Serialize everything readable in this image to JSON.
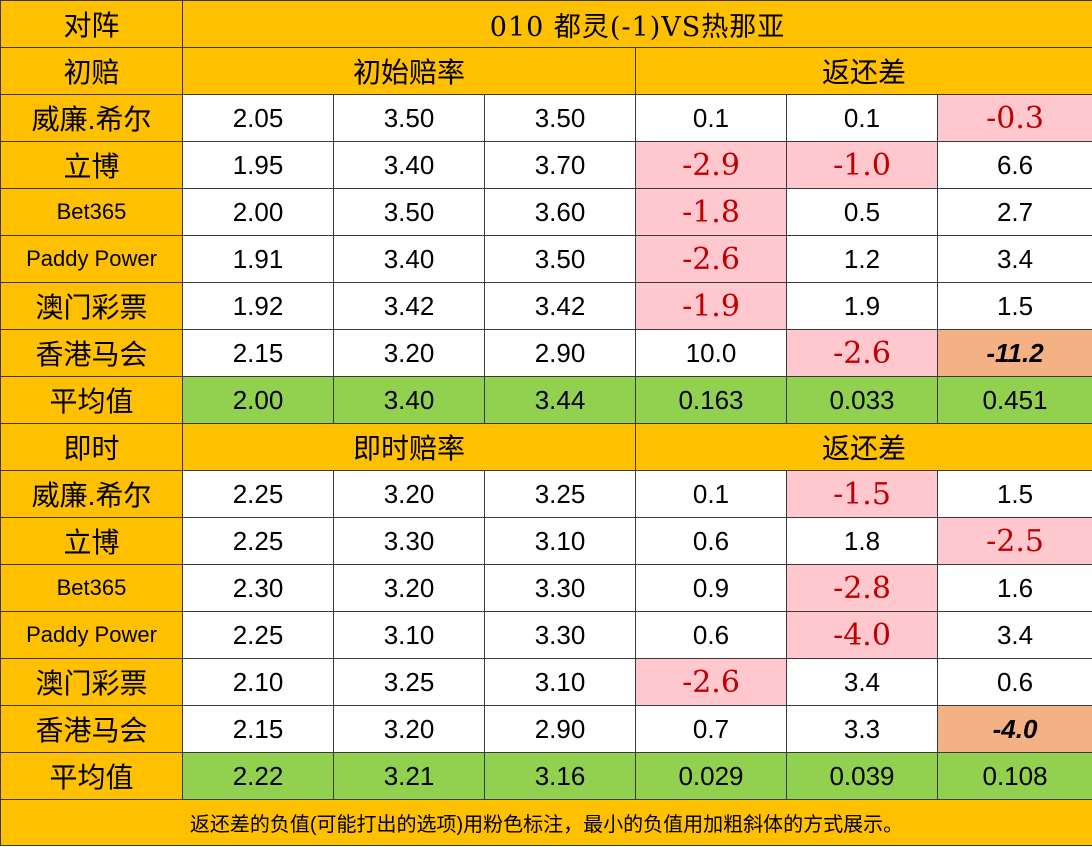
{
  "header": {
    "matchup_label": "对阵",
    "match_title": "010 都灵(-1)VS热那亚"
  },
  "sections": [
    {
      "section_label": "初赔",
      "odds_header": "初始赔率",
      "return_header": "返还差",
      "rows": [
        {
          "bookmaker": "威廉.希尔",
          "odds": [
            "2.05",
            "3.50",
            "3.50"
          ],
          "diff": [
            {
              "v": "0.1",
              "s": "n"
            },
            {
              "v": "0.1",
              "s": "n"
            },
            {
              "v": "-0.3",
              "s": "p"
            }
          ]
        },
        {
          "bookmaker": "立博",
          "odds": [
            "1.95",
            "3.40",
            "3.70"
          ],
          "diff": [
            {
              "v": "-2.9",
              "s": "p"
            },
            {
              "v": "-1.0",
              "s": "p"
            },
            {
              "v": "6.6",
              "s": "n"
            }
          ]
        },
        {
          "bookmaker": "Bet365",
          "odds": [
            "2.00",
            "3.50",
            "3.60"
          ],
          "diff": [
            {
              "v": "-1.8",
              "s": "p"
            },
            {
              "v": "0.5",
              "s": "n"
            },
            {
              "v": "2.7",
              "s": "n"
            }
          ]
        },
        {
          "bookmaker": "Paddy Power",
          "odds": [
            "1.91",
            "3.40",
            "3.50"
          ],
          "diff": [
            {
              "v": "-2.6",
              "s": "p"
            },
            {
              "v": "1.2",
              "s": "n"
            },
            {
              "v": "3.4",
              "s": "n"
            }
          ]
        },
        {
          "bookmaker": "澳门彩票",
          "odds": [
            "1.92",
            "3.42",
            "3.42"
          ],
          "diff": [
            {
              "v": "-1.9",
              "s": "p"
            },
            {
              "v": "1.9",
              "s": "n"
            },
            {
              "v": "1.5",
              "s": "n"
            }
          ]
        },
        {
          "bookmaker": "香港马会",
          "odds": [
            "2.15",
            "3.20",
            "2.90"
          ],
          "diff": [
            {
              "v": "10.0",
              "s": "n"
            },
            {
              "v": "-2.6",
              "s": "p"
            },
            {
              "v": "-11.2",
              "s": "o"
            }
          ]
        }
      ],
      "average": {
        "label": "平均值",
        "odds": [
          "2.00",
          "3.40",
          "3.44"
        ],
        "diff": [
          "0.163",
          "0.033",
          "0.451"
        ]
      }
    },
    {
      "section_label": "即时",
      "odds_header": "即时赔率",
      "return_header": "返还差",
      "rows": [
        {
          "bookmaker": "威廉.希尔",
          "odds": [
            "2.25",
            "3.20",
            "3.25"
          ],
          "diff": [
            {
              "v": "0.1",
              "s": "n"
            },
            {
              "v": "-1.5",
              "s": "p"
            },
            {
              "v": "1.5",
              "s": "n"
            }
          ]
        },
        {
          "bookmaker": "立博",
          "odds": [
            "2.25",
            "3.30",
            "3.10"
          ],
          "diff": [
            {
              "v": "0.6",
              "s": "n"
            },
            {
              "v": "1.8",
              "s": "n"
            },
            {
              "v": "-2.5",
              "s": "p"
            }
          ]
        },
        {
          "bookmaker": "Bet365",
          "odds": [
            "2.30",
            "3.20",
            "3.30"
          ],
          "diff": [
            {
              "v": "0.9",
              "s": "n"
            },
            {
              "v": "-2.8",
              "s": "p"
            },
            {
              "v": "1.6",
              "s": "n"
            }
          ]
        },
        {
          "bookmaker": "Paddy Power",
          "odds": [
            "2.25",
            "3.10",
            "3.30"
          ],
          "diff": [
            {
              "v": "0.6",
              "s": "n"
            },
            {
              "v": "-4.0",
              "s": "p"
            },
            {
              "v": "3.4",
              "s": "n"
            }
          ]
        },
        {
          "bookmaker": "澳门彩票",
          "odds": [
            "2.10",
            "3.25",
            "3.10"
          ],
          "diff": [
            {
              "v": "-2.6",
              "s": "p"
            },
            {
              "v": "3.4",
              "s": "n"
            },
            {
              "v": "0.6",
              "s": "n"
            }
          ]
        },
        {
          "bookmaker": "香港马会",
          "odds": [
            "2.15",
            "3.20",
            "2.90"
          ],
          "diff": [
            {
              "v": "0.7",
              "s": "n"
            },
            {
              "v": "3.3",
              "s": "n"
            },
            {
              "v": "-4.0",
              "s": "o"
            }
          ]
        }
      ],
      "average": {
        "label": "平均值",
        "odds": [
          "2.22",
          "3.21",
          "3.16"
        ],
        "diff": [
          "0.029",
          "0.039",
          "0.108"
        ]
      }
    }
  ],
  "footer": {
    "note": "返还差的负值(可能打出的选项)用粉色标注，最小的负值用加粗斜体的方式展示。"
  },
  "colors": {
    "header_yellow": "#ffc000",
    "average_green": "#92d050",
    "negative_pink": "#ffc7ce",
    "negative_text_red": "#c00000",
    "minimum_orange": "#f4b183"
  }
}
